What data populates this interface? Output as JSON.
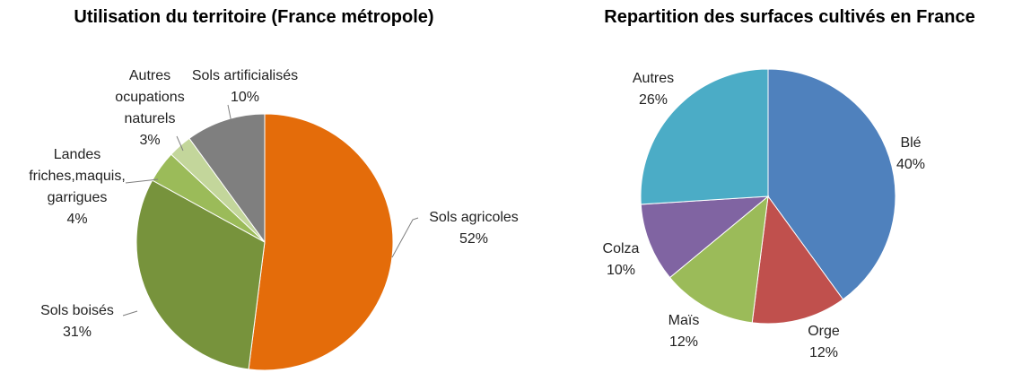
{
  "chart_data": [
    {
      "type": "pie",
      "title": "Utilisation du territoire (France métropole)",
      "categories": [
        "Sols agricoles",
        "Sols boisés",
        "Landes friches,maquis, garrigues",
        "Autres ocupations naturels",
        "Sols artificialisés"
      ],
      "values": [
        52,
        31,
        4,
        3,
        10
      ],
      "value_labels": [
        "52%",
        "31%",
        "4%",
        "3%",
        "10%"
      ],
      "colors": [
        "#e46c0a",
        "#77933c",
        "#9bbb59",
        "#c3d69b",
        "#7f7f7f"
      ]
    },
    {
      "type": "pie",
      "title": "Repartition des surfaces cultivés en France",
      "categories": [
        "Blé",
        "Orge",
        "Maïs",
        "Colza",
        "Autres"
      ],
      "values": [
        40,
        12,
        12,
        10,
        26
      ],
      "value_labels": [
        "40%",
        "12%",
        "12%",
        "10%",
        "26%"
      ],
      "colors": [
        "#4f81bd",
        "#c0504d",
        "#9bbb59",
        "#8064a2",
        "#4bacc6"
      ]
    }
  ]
}
